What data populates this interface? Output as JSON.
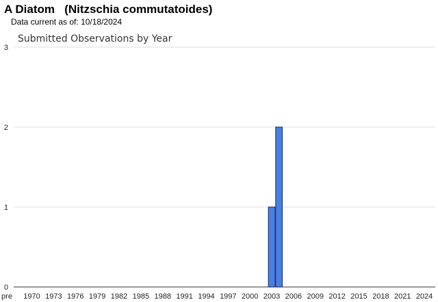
{
  "header": {
    "title": "A Diatom   (Nitzschia commutatoides)",
    "date_label": "Data current as of:",
    "date_value": "10/18/2024"
  },
  "chart_data": {
    "type": "bar",
    "title": "Submitted Observations by Year",
    "xlabel": "",
    "ylabel": "",
    "ylim": [
      0,
      3
    ],
    "y_ticks": [
      0,
      1,
      2,
      3
    ],
    "x_tick_labels": [
      "pre",
      "1970",
      "1973",
      "1976",
      "1979",
      "1982",
      "1985",
      "1988",
      "1991",
      "1994",
      "1997",
      "2000",
      "2003",
      "2006",
      "2009",
      "2012",
      "2015",
      "2018",
      "2021",
      "2024"
    ],
    "x_min": 1967.5,
    "x_max": 2025.5,
    "bars": [
      {
        "year": 2003,
        "value": 1
      },
      {
        "year": 2004,
        "value": 2
      }
    ],
    "grid": true,
    "colors": {
      "bar": "#4a7fe0",
      "bar_border": "#1a3c8a",
      "grid": "#dddddd",
      "axis": "#333333"
    }
  }
}
